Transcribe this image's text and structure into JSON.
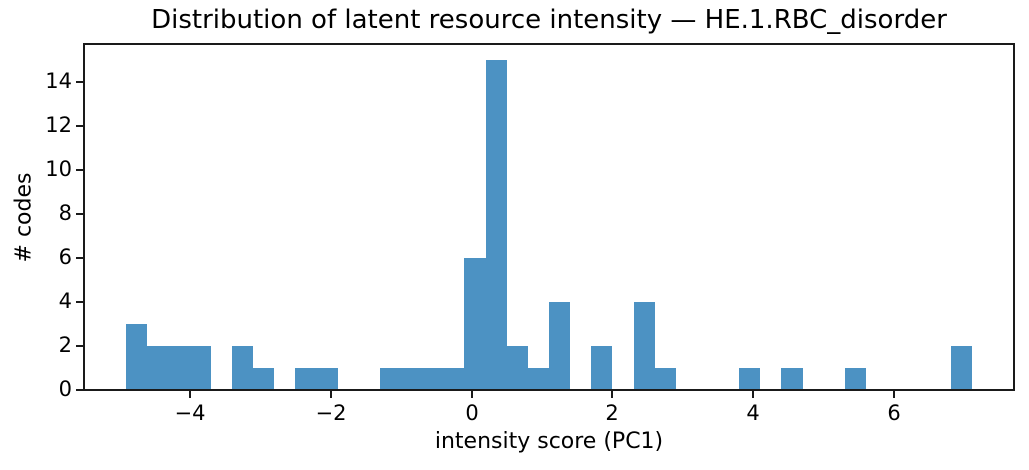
{
  "chart_data": {
    "type": "bar",
    "subtype": "histogram",
    "title": "Distribution of latent resource intensity — HE.1.RBC_disorder",
    "xlabel": "intensity score (PC1)",
    "ylabel": "# codes",
    "bin_start": -4.9,
    "bin_width": 0.3,
    "counts": [
      3,
      2,
      2,
      2,
      0,
      2,
      1,
      0,
      1,
      1,
      0,
      0,
      1,
      1,
      1,
      1,
      6,
      15,
      2,
      1,
      4,
      0,
      2,
      0,
      4,
      1,
      0,
      0,
      0,
      1,
      0,
      1,
      0,
      0,
      1,
      0,
      0,
      0,
      0,
      2
    ],
    "xlim": [
      -5.5,
      7.7
    ],
    "ylim": [
      0,
      15.75
    ],
    "x_ticks": [
      -4,
      -2,
      0,
      2,
      4,
      6
    ],
    "x_tick_labels": [
      "−4",
      "−2",
      "0",
      "2",
      "4",
      "6"
    ],
    "y_ticks": [
      0,
      2,
      4,
      6,
      8,
      10,
      12,
      14
    ],
    "y_tick_labels": [
      "0",
      "2",
      "4",
      "6",
      "8",
      "10",
      "12",
      "14"
    ],
    "bar_color": "#4C92C3",
    "axis_color": "#1a1a1a",
    "grid": false,
    "legend": null
  }
}
